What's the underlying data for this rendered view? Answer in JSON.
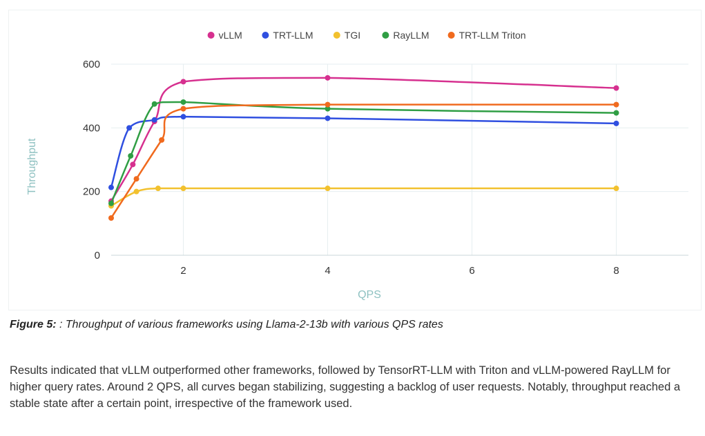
{
  "figure": {
    "caption_label": "Figure 5:",
    "caption_text": " : Throughput of various frameworks using Llama-2-13b with various QPS rates"
  },
  "paragraph": "Results indicated that vLLM outperformed other frameworks, followed by TensorRT-LLM with Triton and vLLM-powered RayLLM for higher query rates. Around 2 QPS, all curves began stabilizing, suggesting a backlog of user requests. Notably, throughput reached a stable state after a certain point, irrespective of the framework used.",
  "chart_data": {
    "type": "line",
    "title": "",
    "xlabel": "QPS",
    "ylabel": "Throughput",
    "xlim": [
      1,
      9
    ],
    "ylim": [
      0,
      600
    ],
    "xticks": [
      2,
      4,
      6,
      8
    ],
    "yticks": [
      0,
      200,
      400,
      600
    ],
    "grid": true,
    "legend_position": "top-center",
    "series": [
      {
        "name": "vLLM",
        "color": "#d6308f",
        "x": [
          1,
          1.3,
          1.6,
          2,
          4,
          8
        ],
        "y": [
          170,
          285,
          420,
          545,
          557,
          525
        ]
      },
      {
        "name": "TRT-LLM",
        "color": "#2f4fe0",
        "x": [
          1,
          1.25,
          1.6,
          2,
          4,
          8
        ],
        "y": [
          213,
          400,
          425,
          435,
          430,
          414
        ]
      },
      {
        "name": "TGI",
        "color": "#f2c12e",
        "x": [
          1,
          1.35,
          1.65,
          2,
          4,
          8
        ],
        "y": [
          155,
          200,
          210,
          210,
          210,
          210
        ]
      },
      {
        "name": "RayLLM",
        "color": "#2f9e44",
        "x": [
          1,
          1.27,
          1.6,
          2,
          4,
          8
        ],
        "y": [
          163,
          312,
          475,
          481,
          460,
          447
        ]
      },
      {
        "name": "TRT-LLM Triton",
        "color": "#f06a1e",
        "x": [
          1,
          1.35,
          1.7,
          2,
          4,
          8
        ],
        "y": [
          117,
          240,
          362,
          460,
          473,
          473
        ]
      }
    ]
  }
}
